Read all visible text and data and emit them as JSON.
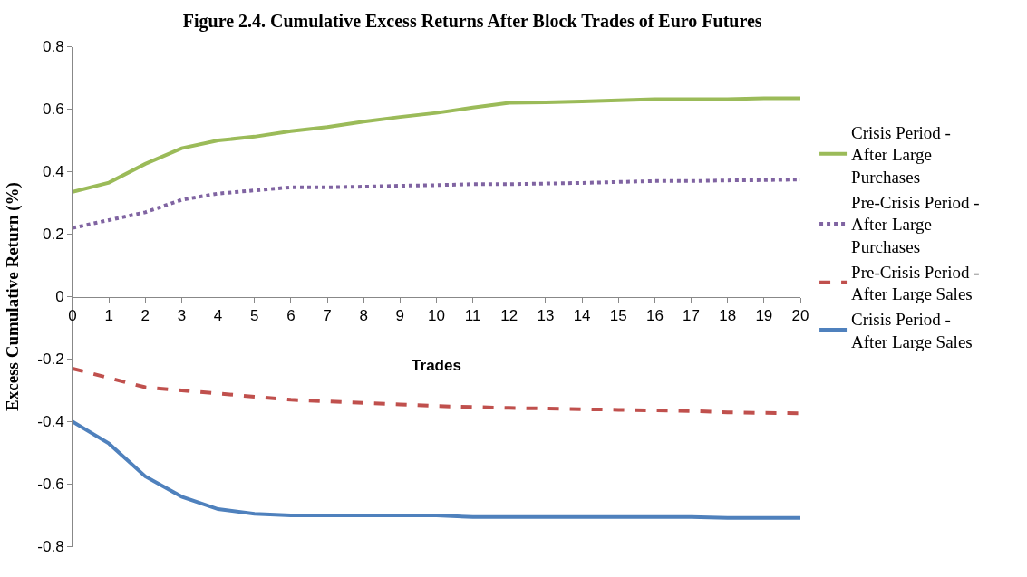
{
  "chart_data": {
    "type": "line",
    "title": "Figure 2.4. Cumulative Excess Returns After Block Trades of Euro Futures",
    "xlabel": "Trades",
    "ylabel": "Excess Cumulative Return (%)",
    "x": [
      0,
      1,
      2,
      3,
      4,
      5,
      6,
      7,
      8,
      9,
      10,
      11,
      12,
      13,
      14,
      15,
      16,
      17,
      18,
      19,
      20
    ],
    "xlim": [
      0,
      20
    ],
    "xticks": [
      0,
      1,
      2,
      3,
      4,
      5,
      6,
      7,
      8,
      9,
      10,
      11,
      12,
      13,
      14,
      15,
      16,
      17,
      18,
      19,
      20
    ],
    "ylim": [
      -0.8,
      0.8
    ],
    "yticks": [
      -0.8,
      -0.6,
      -0.4,
      -0.2,
      0,
      0.2,
      0.4,
      0.6,
      0.8
    ],
    "legend": "right",
    "marker": "none",
    "series": [
      {
        "name": "Crisis Period - After Large Purchases",
        "color": "#9bbb59",
        "line_style": "solid",
        "values": [
          0.335,
          0.365,
          0.425,
          0.475,
          0.5,
          0.512,
          0.53,
          0.543,
          0.56,
          0.575,
          0.588,
          0.605,
          0.62,
          0.622,
          0.625,
          0.628,
          0.632,
          0.632,
          0.632,
          0.635,
          0.635
        ]
      },
      {
        "name": "Pre-Crisis Period - After Large Purchases",
        "color": "#8064a2",
        "line_style": "dotted",
        "values": [
          0.22,
          0.245,
          0.27,
          0.31,
          0.33,
          0.34,
          0.35,
          0.35,
          0.352,
          0.355,
          0.357,
          0.36,
          0.36,
          0.362,
          0.364,
          0.367,
          0.37,
          0.37,
          0.372,
          0.373,
          0.375
        ]
      },
      {
        "name": "Pre-Crisis Period - After Large Sales",
        "color": "#c0504d",
        "line_style": "dashed",
        "values": [
          -0.23,
          -0.26,
          -0.29,
          -0.3,
          -0.31,
          -0.32,
          -0.33,
          -0.335,
          -0.34,
          -0.345,
          -0.35,
          -0.353,
          -0.356,
          -0.358,
          -0.36,
          -0.362,
          -0.364,
          -0.366,
          -0.37,
          -0.372,
          -0.373
        ]
      },
      {
        "name": "Crisis Period - After Large Sales",
        "color": "#4f81bd",
        "line_style": "solid",
        "values": [
          -0.4,
          -0.47,
          -0.575,
          -0.64,
          -0.68,
          -0.695,
          -0.7,
          -0.7,
          -0.7,
          -0.7,
          -0.7,
          -0.705,
          -0.705,
          -0.705,
          -0.705,
          -0.705,
          -0.705,
          -0.705,
          -0.708,
          -0.708,
          -0.708
        ]
      }
    ]
  }
}
